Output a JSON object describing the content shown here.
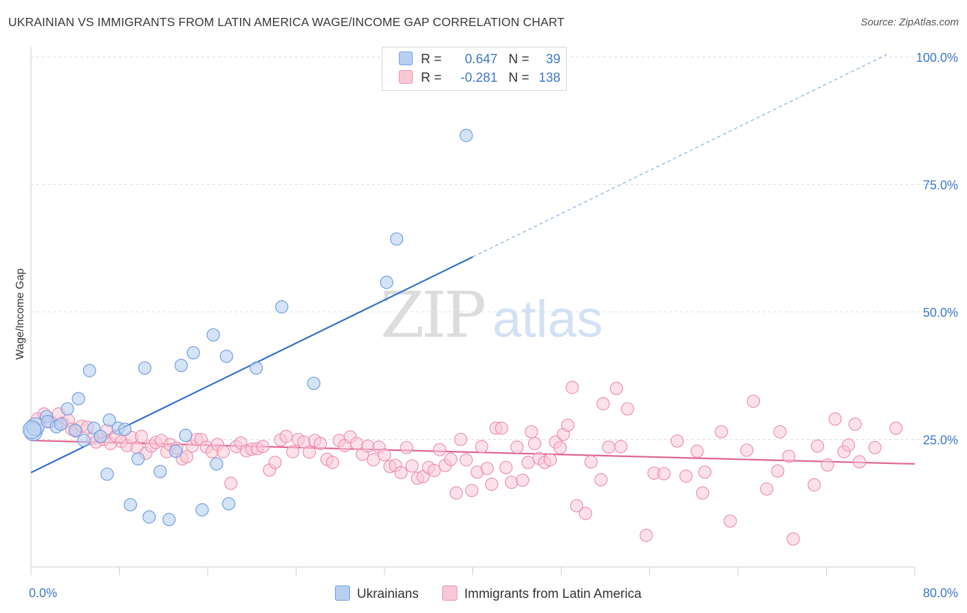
{
  "title": "UKRAINIAN VS IMMIGRANTS FROM LATIN AMERICA WAGE/INCOME GAP CORRELATION CHART",
  "source": "Source: ZipAtlas.com",
  "watermark": {
    "part1": "ZIP",
    "part2": "atlas"
  },
  "legend": {
    "rows": [
      {
        "r_label": "R =",
        "r_value": "0.647",
        "n_label": "N =",
        "n_value": "39"
      },
      {
        "r_label": "R =",
        "r_value": "-0.281",
        "n_label": "N =",
        "n_value": "138"
      }
    ]
  },
  "bottom_legend": {
    "series1": "Ukrainians",
    "series2": "Immigrants from Latin America"
  },
  "colors": {
    "blue_fill": "#b7d0f2",
    "blue_stroke": "#6f9ee0",
    "blue_line": "#2f6fcc",
    "pink_fill": "#f9c8d7",
    "pink_stroke": "#ec91ae",
    "pink_line": "#e0648f",
    "axis_text": "#3d78c7",
    "grid": "#dddddd"
  },
  "chart_data": {
    "type": "scatter",
    "title": "UKRAINIAN VS IMMIGRANTS FROM LATIN AMERICA WAGE/INCOME GAP CORRELATION CHART",
    "xlabel": "",
    "ylabel": "Wage/Income Gap",
    "xlim": [
      0,
      80
    ],
    "ylim": [
      0,
      102
    ],
    "x_tick_labels": [
      "0.0%",
      "80.0%"
    ],
    "y_tick_labels": [
      "25.0%",
      "50.0%",
      "75.0%",
      "100.0%"
    ],
    "y_ticks": [
      25,
      50,
      75,
      100
    ],
    "grid": true,
    "legend_placement": "top-center",
    "series": [
      {
        "name": "Ukrainians",
        "r": 0.647,
        "n": 39,
        "trend": {
          "x0": 0,
          "y0": 18.5,
          "x1": 40,
          "y1": 60.8,
          "dashed_to_x": 77.5,
          "dashed_to_y": 100.5
        },
        "points": [
          [
            0.2,
            26.5
          ],
          [
            0.4,
            27.5
          ],
          [
            1.4,
            29.5
          ],
          [
            1.5,
            28.5
          ],
          [
            2.3,
            27.5
          ],
          [
            2.7,
            28.0
          ],
          [
            3.3,
            31.0
          ],
          [
            4.0,
            26.8
          ],
          [
            4.3,
            33.0
          ],
          [
            4.8,
            24.8
          ],
          [
            5.3,
            38.5
          ],
          [
            5.7,
            27.2
          ],
          [
            6.3,
            25.6
          ],
          [
            7.1,
            28.8
          ],
          [
            7.9,
            27.2
          ],
          [
            8.5,
            27.0
          ],
          [
            6.9,
            18.2
          ],
          [
            9.0,
            12.2
          ],
          [
            9.7,
            21.2
          ],
          [
            10.3,
            39.0
          ],
          [
            10.7,
            9.8
          ],
          [
            11.7,
            18.7
          ],
          [
            12.5,
            9.3
          ],
          [
            13.1,
            22.7
          ],
          [
            13.6,
            39.5
          ],
          [
            14.0,
            25.8
          ],
          [
            14.7,
            42.0
          ],
          [
            15.5,
            11.2
          ],
          [
            16.5,
            45.5
          ],
          [
            16.8,
            20.2
          ],
          [
            17.7,
            41.3
          ],
          [
            17.9,
            12.4
          ],
          [
            20.4,
            39.0
          ],
          [
            22.7,
            51.0
          ],
          [
            25.6,
            36.0
          ],
          [
            32.2,
            55.8
          ],
          [
            33.1,
            64.3
          ],
          [
            39.4,
            84.6
          ],
          [
            0.1,
            26.9
          ]
        ]
      },
      {
        "name": "Immigrants from Latin America",
        "r": -0.281,
        "n": 138,
        "trend": {
          "x0": 0,
          "y0": 24.8,
          "x1": 80,
          "y1": 20.2
        },
        "points": [
          [
            0.6,
            29.0
          ],
          [
            1.2,
            30.0
          ],
          [
            1.8,
            28.5
          ],
          [
            2.5,
            30.0
          ],
          [
            2.9,
            28.2
          ],
          [
            3.4,
            28.7
          ],
          [
            3.7,
            27.0
          ],
          [
            4.1,
            26.6
          ],
          [
            4.6,
            27.6
          ],
          [
            5.1,
            27.4
          ],
          [
            5.6,
            25.2
          ],
          [
            5.9,
            24.5
          ],
          [
            6.6,
            25.0
          ],
          [
            6.9,
            26.8
          ],
          [
            7.2,
            24.2
          ],
          [
            7.7,
            25.7
          ],
          [
            8.2,
            24.6
          ],
          [
            8.7,
            23.8
          ],
          [
            9.1,
            25.4
          ],
          [
            9.6,
            23.4
          ],
          [
            10.0,
            25.6
          ],
          [
            10.4,
            22.3
          ],
          [
            10.9,
            23.7
          ],
          [
            11.3,
            24.4
          ],
          [
            11.8,
            24.8
          ],
          [
            12.3,
            22.6
          ],
          [
            12.6,
            24.0
          ],
          [
            13.2,
            23.3
          ],
          [
            13.7,
            21.2
          ],
          [
            14.1,
            21.6
          ],
          [
            14.6,
            23.7
          ],
          [
            15.0,
            25.0
          ],
          [
            15.4,
            25.0
          ],
          [
            15.9,
            23.5
          ],
          [
            16.4,
            22.6
          ],
          [
            16.9,
            24.0
          ],
          [
            17.4,
            22.6
          ],
          [
            18.1,
            16.4
          ],
          [
            18.6,
            23.6
          ],
          [
            19.0,
            24.3
          ],
          [
            19.5,
            22.8
          ],
          [
            20.0,
            23.1
          ],
          [
            20.5,
            23.2
          ],
          [
            21.0,
            23.6
          ],
          [
            21.6,
            19.0
          ],
          [
            22.1,
            20.5
          ],
          [
            22.6,
            24.9
          ],
          [
            23.1,
            25.6
          ],
          [
            23.7,
            22.6
          ],
          [
            24.2,
            25.0
          ],
          [
            24.7,
            24.5
          ],
          [
            25.2,
            22.5
          ],
          [
            25.7,
            24.8
          ],
          [
            26.2,
            24.2
          ],
          [
            26.8,
            21.1
          ],
          [
            27.3,
            20.5
          ],
          [
            27.9,
            24.8
          ],
          [
            28.4,
            23.8
          ],
          [
            28.9,
            25.5
          ],
          [
            29.5,
            24.2
          ],
          [
            30.0,
            22.1
          ],
          [
            30.5,
            23.7
          ],
          [
            31.0,
            21.0
          ],
          [
            31.5,
            23.5
          ],
          [
            32.0,
            22.0
          ],
          [
            32.5,
            19.7
          ],
          [
            33.0,
            19.9
          ],
          [
            33.5,
            18.5
          ],
          [
            34.0,
            23.4
          ],
          [
            34.5,
            19.8
          ],
          [
            35.0,
            17.4
          ],
          [
            35.5,
            17.7
          ],
          [
            36.0,
            19.5
          ],
          [
            36.5,
            18.9
          ],
          [
            37.0,
            23.0
          ],
          [
            37.5,
            19.9
          ],
          [
            38.0,
            21.1
          ],
          [
            38.5,
            14.5
          ],
          [
            38.9,
            25.0
          ],
          [
            39.4,
            21.0
          ],
          [
            39.9,
            15.0
          ],
          [
            40.4,
            18.6
          ],
          [
            40.8,
            23.6
          ],
          [
            41.3,
            19.3
          ],
          [
            41.7,
            16.2
          ],
          [
            42.1,
            27.2
          ],
          [
            42.6,
            27.2
          ],
          [
            43.0,
            19.5
          ],
          [
            43.5,
            16.6
          ],
          [
            44.0,
            23.5
          ],
          [
            44.5,
            17.0
          ],
          [
            45.0,
            20.5
          ],
          [
            45.3,
            26.5
          ],
          [
            45.6,
            24.2
          ],
          [
            46.0,
            21.3
          ],
          [
            46.5,
            20.5
          ],
          [
            47.0,
            21.0
          ],
          [
            47.5,
            24.5
          ],
          [
            47.9,
            23.4
          ],
          [
            48.2,
            26.0
          ],
          [
            48.6,
            27.8
          ],
          [
            49.0,
            35.2
          ],
          [
            49.4,
            12.0
          ],
          [
            50.2,
            10.5
          ],
          [
            50.7,
            20.6
          ],
          [
            51.6,
            17.1
          ],
          [
            51.8,
            32.0
          ],
          [
            52.3,
            23.5
          ],
          [
            53.0,
            35.0
          ],
          [
            53.4,
            23.6
          ],
          [
            54.0,
            31.0
          ],
          [
            55.7,
            6.2
          ],
          [
            56.4,
            18.4
          ],
          [
            57.3,
            18.3
          ],
          [
            58.5,
            24.7
          ],
          [
            59.3,
            17.8
          ],
          [
            60.3,
            22.7
          ],
          [
            60.8,
            14.5
          ],
          [
            61.0,
            18.6
          ],
          [
            62.5,
            26.5
          ],
          [
            63.3,
            9.0
          ],
          [
            64.8,
            22.9
          ],
          [
            65.4,
            32.5
          ],
          [
            66.6,
            15.3
          ],
          [
            67.6,
            18.8
          ],
          [
            67.8,
            26.5
          ],
          [
            68.6,
            21.7
          ],
          [
            69.0,
            5.5
          ],
          [
            70.9,
            16.1
          ],
          [
            71.2,
            23.7
          ],
          [
            72.1,
            20.0
          ],
          [
            72.8,
            29.0
          ],
          [
            73.6,
            22.6
          ],
          [
            74.0,
            23.9
          ],
          [
            74.6,
            28.0
          ],
          [
            75.0,
            20.6
          ],
          [
            76.4,
            23.4
          ],
          [
            78.3,
            27.2
          ]
        ]
      }
    ]
  }
}
